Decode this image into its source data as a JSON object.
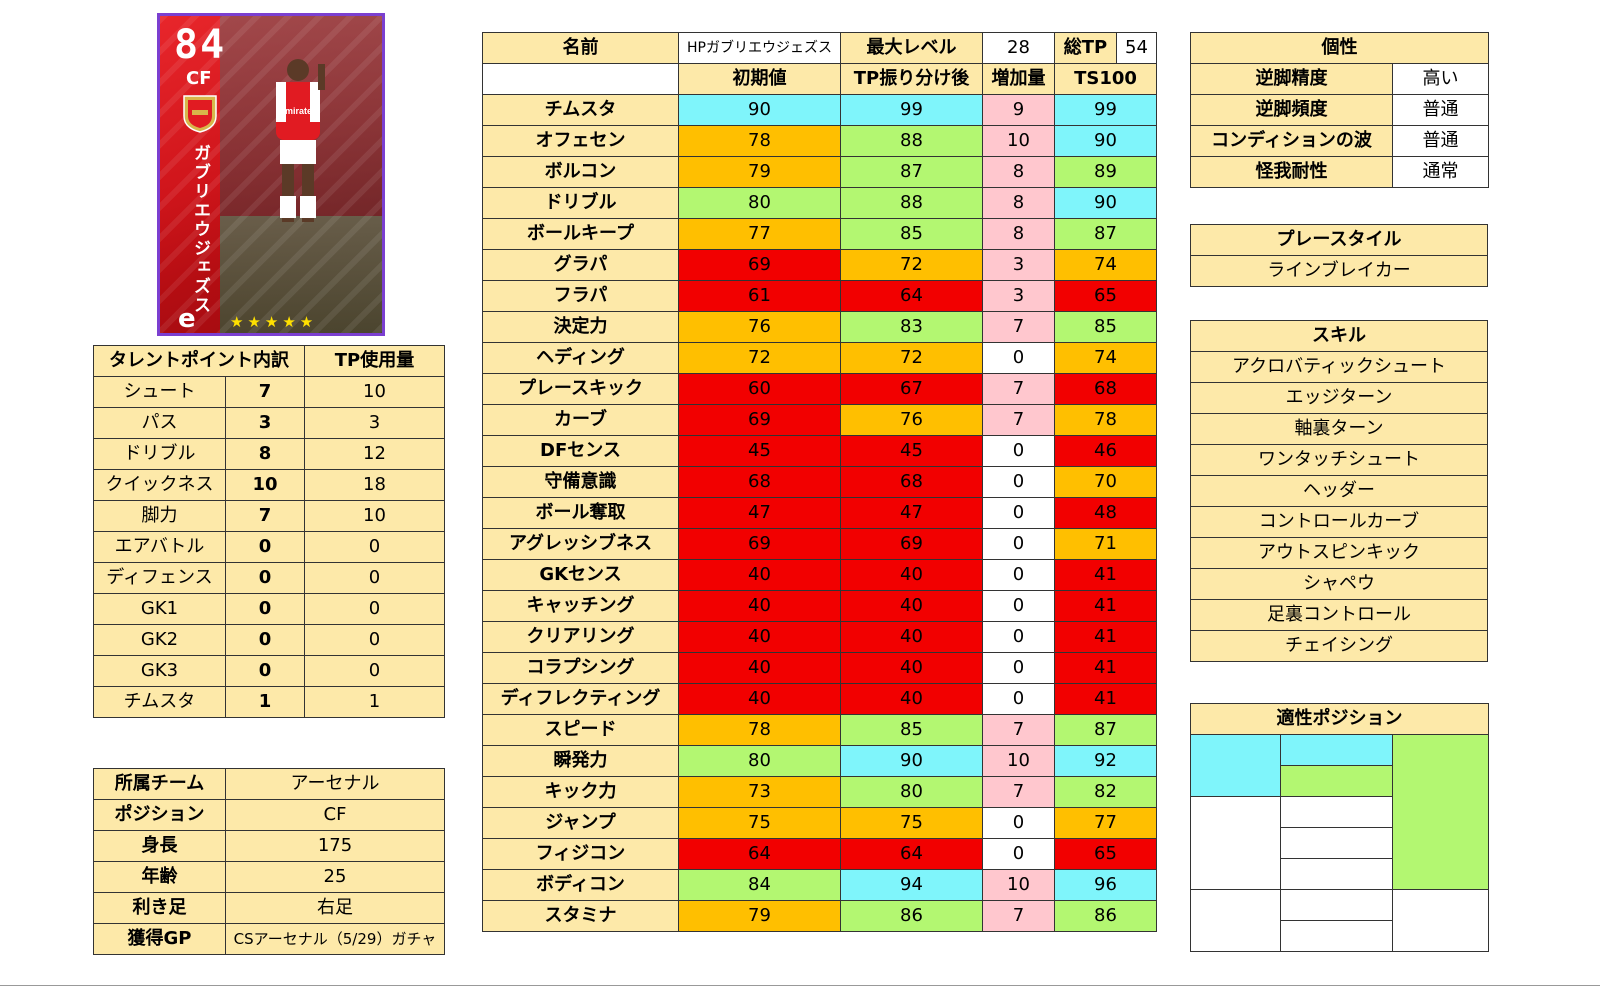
{
  "card": {
    "rating": "84",
    "position": "CF",
    "name_vertical": "ガブリエウジェズス",
    "stars": "★★★★★",
    "logo": "e",
    "shirt_text": "Emirates"
  },
  "tp_breakdown": {
    "header": [
      "タレントポイント内訳",
      "TP使用量"
    ],
    "rows": [
      {
        "label": "シュート",
        "points": "7",
        "tp": "10"
      },
      {
        "label": "パス",
        "points": "3",
        "tp": "3"
      },
      {
        "label": "ドリブル",
        "points": "8",
        "tp": "12"
      },
      {
        "label": "クイックネス",
        "points": "10",
        "tp": "18"
      },
      {
        "label": "脚力",
        "points": "7",
        "tp": "10"
      },
      {
        "label": "エアバトル",
        "points": "0",
        "tp": "0"
      },
      {
        "label": "ディフェンス",
        "points": "0",
        "tp": "0"
      },
      {
        "label": "GK1",
        "points": "0",
        "tp": "0"
      },
      {
        "label": "GK2",
        "points": "0",
        "tp": "0"
      },
      {
        "label": "GK3",
        "points": "0",
        "tp": "0"
      },
      {
        "label": "チムスタ",
        "points": "1",
        "tp": "1"
      }
    ]
  },
  "profile": {
    "rows": [
      {
        "label": "所属チーム",
        "value": "アーセナル"
      },
      {
        "label": "ポジション",
        "value": "CF"
      },
      {
        "label": "身長",
        "value": "175"
      },
      {
        "label": "年齢",
        "value": "25"
      },
      {
        "label": "利き足",
        "value": "右足"
      },
      {
        "label": "獲得GP",
        "value": "CSアーセナル（5/29）ガチャ"
      }
    ]
  },
  "stats": {
    "name_label": "名前",
    "name_value": "HPガブリエウジェズス",
    "max_level_label": "最大レベル",
    "max_level_value": "28",
    "total_tp_label": "総TP",
    "total_tp_value": "54",
    "columns": [
      "初期値",
      "TP振り分け後",
      "増加量",
      "TS100"
    ],
    "rows": [
      {
        "label": "チムスタ",
        "v": [
          "90",
          "99",
          "9",
          "99"
        ],
        "c": [
          "cyan",
          "cyan",
          "pink",
          "cyan"
        ]
      },
      {
        "label": "オフェセン",
        "v": [
          "78",
          "88",
          "10",
          "90"
        ],
        "c": [
          "orange",
          "green",
          "pink",
          "cyan"
        ]
      },
      {
        "label": "ボルコン",
        "v": [
          "79",
          "87",
          "8",
          "89"
        ],
        "c": [
          "orange",
          "green",
          "pink",
          "green"
        ]
      },
      {
        "label": "ドリブル",
        "v": [
          "80",
          "88",
          "8",
          "90"
        ],
        "c": [
          "green",
          "green",
          "pink",
          "cyan"
        ]
      },
      {
        "label": "ボールキープ",
        "v": [
          "77",
          "85",
          "8",
          "87"
        ],
        "c": [
          "orange",
          "green",
          "pink",
          "green"
        ]
      },
      {
        "label": "グラパ",
        "v": [
          "69",
          "72",
          "3",
          "74"
        ],
        "c": [
          "red",
          "orange",
          "pink",
          "orange"
        ]
      },
      {
        "label": "フラパ",
        "v": [
          "61",
          "64",
          "3",
          "65"
        ],
        "c": [
          "red",
          "red",
          "pink",
          "red"
        ]
      },
      {
        "label": "決定力",
        "v": [
          "76",
          "83",
          "7",
          "85"
        ],
        "c": [
          "orange",
          "green",
          "pink",
          "green"
        ]
      },
      {
        "label": "ヘディング",
        "v": [
          "72",
          "72",
          "0",
          "74"
        ],
        "c": [
          "orange",
          "orange",
          "w",
          "orange"
        ]
      },
      {
        "label": "プレースキック",
        "v": [
          "60",
          "67",
          "7",
          "68"
        ],
        "c": [
          "red",
          "red",
          "pink",
          "red"
        ]
      },
      {
        "label": "カーブ",
        "v": [
          "69",
          "76",
          "7",
          "78"
        ],
        "c": [
          "red",
          "orange",
          "pink",
          "orange"
        ]
      },
      {
        "label": "DFセンス",
        "v": [
          "45",
          "45",
          "0",
          "46"
        ],
        "c": [
          "red",
          "red",
          "w",
          "red"
        ]
      },
      {
        "label": "守備意識",
        "v": [
          "68",
          "68",
          "0",
          "70"
        ],
        "c": [
          "red",
          "red",
          "w",
          "orange"
        ]
      },
      {
        "label": "ボール奪取",
        "v": [
          "47",
          "47",
          "0",
          "48"
        ],
        "c": [
          "red",
          "red",
          "w",
          "red"
        ]
      },
      {
        "label": "アグレッシブネス",
        "v": [
          "69",
          "69",
          "0",
          "71"
        ],
        "c": [
          "red",
          "red",
          "w",
          "orange"
        ]
      },
      {
        "label": "GKセンス",
        "v": [
          "40",
          "40",
          "0",
          "41"
        ],
        "c": [
          "red",
          "red",
          "w",
          "red"
        ]
      },
      {
        "label": "キャッチング",
        "v": [
          "40",
          "40",
          "0",
          "41"
        ],
        "c": [
          "red",
          "red",
          "w",
          "red"
        ]
      },
      {
        "label": "クリアリング",
        "v": [
          "40",
          "40",
          "0",
          "41"
        ],
        "c": [
          "red",
          "red",
          "w",
          "red"
        ]
      },
      {
        "label": "コラプシング",
        "v": [
          "40",
          "40",
          "0",
          "41"
        ],
        "c": [
          "red",
          "red",
          "w",
          "red"
        ]
      },
      {
        "label": "ディフレクティング",
        "v": [
          "40",
          "40",
          "0",
          "41"
        ],
        "c": [
          "red",
          "red",
          "w",
          "red"
        ]
      },
      {
        "label": "スピード",
        "v": [
          "78",
          "85",
          "7",
          "87"
        ],
        "c": [
          "orange",
          "green",
          "pink",
          "green"
        ]
      },
      {
        "label": "瞬発力",
        "v": [
          "80",
          "90",
          "10",
          "92"
        ],
        "c": [
          "green",
          "cyan",
          "pink",
          "cyan"
        ]
      },
      {
        "label": "キック力",
        "v": [
          "73",
          "80",
          "7",
          "82"
        ],
        "c": [
          "orange",
          "green",
          "pink",
          "green"
        ]
      },
      {
        "label": "ジャンプ",
        "v": [
          "75",
          "75",
          "0",
          "77"
        ],
        "c": [
          "orange",
          "orange",
          "w",
          "orange"
        ]
      },
      {
        "label": "フィジコン",
        "v": [
          "64",
          "64",
          "0",
          "65"
        ],
        "c": [
          "red",
          "red",
          "w",
          "red"
        ]
      },
      {
        "label": "ボディコン",
        "v": [
          "84",
          "94",
          "10",
          "96"
        ],
        "c": [
          "green",
          "cyan",
          "pink",
          "cyan"
        ]
      },
      {
        "label": "スタミナ",
        "v": [
          "79",
          "86",
          "7",
          "86"
        ],
        "c": [
          "orange",
          "green",
          "pink",
          "green"
        ]
      }
    ]
  },
  "personality": {
    "title": "個性",
    "rows": [
      {
        "label": "逆脚精度",
        "value": "高い"
      },
      {
        "label": "逆脚頻度",
        "value": "普通"
      },
      {
        "label": "コンディションの波",
        "value": "普通"
      },
      {
        "label": "怪我耐性",
        "value": "通常"
      }
    ]
  },
  "playstyle": {
    "title": "プレースタイル",
    "value": "ラインブレイカー"
  },
  "skills": {
    "title": "スキル",
    "items": [
      "アクロバティックシュート",
      "エッジターン",
      "軸裏ターン",
      "ワンタッチシュート",
      "ヘッダー",
      "コントロールカーブ",
      "アウトスピンキック",
      "シャペウ",
      "足裏コントロール",
      "チェイシング"
    ]
  },
  "positions": {
    "title": "適性ポジション",
    "colors": {
      "best": "#7ff5fb",
      "good": "#b3f771",
      "none": "#ffffff"
    }
  }
}
